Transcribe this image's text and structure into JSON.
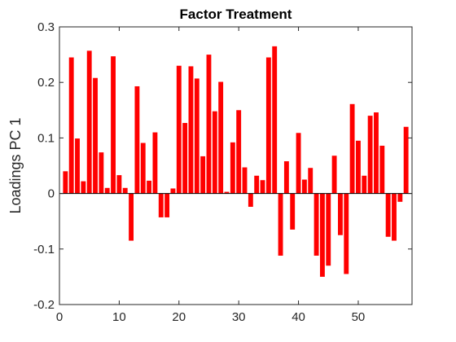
{
  "chart_data": {
    "type": "bar",
    "title": "Factor Treatment",
    "xlabel": "",
    "ylabel": "Loadings PC 1",
    "xlim": [
      0,
      59
    ],
    "ylim": [
      -0.2,
      0.3
    ],
    "xticks": [
      0,
      10,
      20,
      30,
      40,
      50
    ],
    "xtick_labels": [
      "0",
      "10",
      "20",
      "30",
      "40",
      "50"
    ],
    "yticks": [
      -0.2,
      -0.1,
      0,
      0.1,
      0.2,
      0.3
    ],
    "ytick_labels": [
      "-0.2",
      "-0.1",
      "0",
      "0.1",
      "0.2",
      "0.3"
    ],
    "grid": false,
    "bar_color": "#ff0000",
    "x": [
      1,
      2,
      3,
      4,
      5,
      6,
      7,
      8,
      9,
      10,
      11,
      12,
      13,
      14,
      15,
      16,
      17,
      18,
      19,
      20,
      21,
      22,
      23,
      24,
      25,
      26,
      27,
      28,
      29,
      30,
      31,
      32,
      33,
      34,
      35,
      36,
      37,
      38,
      39,
      40,
      41,
      42,
      43,
      44,
      45,
      46,
      47,
      48,
      49,
      50,
      51,
      52,
      53,
      54,
      55,
      56,
      57,
      58
    ],
    "values": [
      0.04,
      0.245,
      0.099,
      0.022,
      0.257,
      0.208,
      0.074,
      0.01,
      0.247,
      0.033,
      0.01,
      -0.085,
      0.193,
      0.091,
      0.023,
      0.11,
      -0.043,
      -0.043,
      0.009,
      0.23,
      0.127,
      0.229,
      0.207,
      0.067,
      0.25,
      0.148,
      0.201,
      0.003,
      0.092,
      0.15,
      0.047,
      -0.024,
      0.032,
      0.024,
      0.245,
      0.265,
      -0.112,
      0.058,
      -0.065,
      0.109,
      0.025,
      0.046,
      -0.112,
      -0.15,
      -0.13,
      0.068,
      -0.075,
      -0.145,
      0.161,
      0.095,
      0.032,
      0.14,
      0.146,
      0.086,
      -0.078,
      -0.085,
      -0.015,
      0.12
    ]
  }
}
